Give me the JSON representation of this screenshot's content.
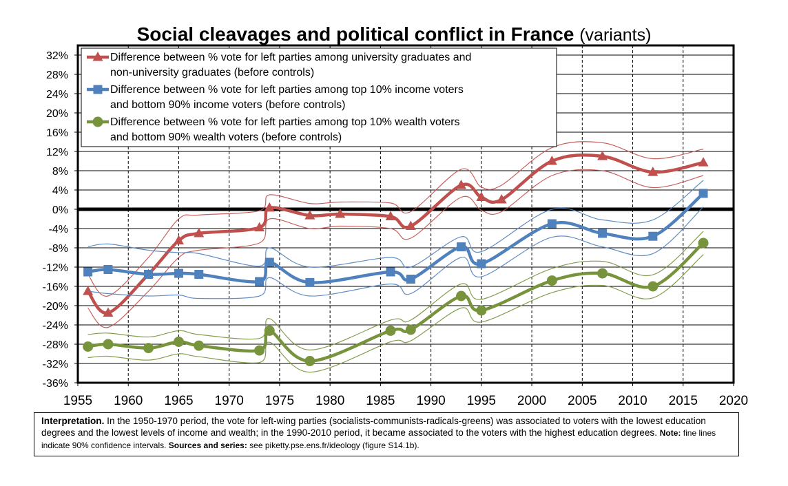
{
  "chart_data": {
    "type": "line",
    "title": "Social cleavages and political conflict in France",
    "subtitle": "(variants)",
    "xlim": [
      1955,
      2020
    ],
    "ylim": [
      -36,
      34
    ],
    "x_ticks": [
      1955,
      1960,
      1965,
      1970,
      1975,
      1980,
      1985,
      1990,
      1995,
      2000,
      2005,
      2010,
      2015,
      2020
    ],
    "y_ticks": [
      -36,
      -32,
      -28,
      -24,
      -20,
      -16,
      -12,
      -8,
      -4,
      0,
      4,
      8,
      12,
      16,
      20,
      24,
      28,
      32
    ],
    "y_tick_labels": [
      "-36%",
      "-32%",
      "-28%",
      "-24%",
      "-20%",
      "-16%",
      "-12%",
      "-8%",
      "-4%",
      "0%",
      "4%",
      "8%",
      "12%",
      "16%",
      "20%",
      "24%",
      "28%",
      "32%"
    ],
    "x_tick_labels": [
      "1955",
      "1960",
      "1965",
      "1970",
      "1975",
      "1980",
      "1985",
      "1990",
      "1995",
      "2000",
      "2005",
      "2010",
      "2015",
      "2020"
    ],
    "grid": true,
    "legend_position": "top-left",
    "series": [
      {
        "name_lines": [
          "Difference between % vote for left parties among university graduates and",
          "non-university graduates (before controls)"
        ],
        "color": "#c0504d",
        "marker": "triangle",
        "x": [
          1956,
          1958,
          1962,
          1965,
          1967,
          1973,
          1974,
          1978,
          1981,
          1986,
          1988,
          1993,
          1995,
          1997,
          2002,
          2007,
          2012,
          2017
        ],
        "values": [
          -17,
          -21.5,
          -13.5,
          -6.5,
          -5,
          -3.8,
          0.3,
          -1.3,
          -1,
          -1.5,
          -3.5,
          5,
          2.5,
          2,
          10,
          11,
          7.7,
          9.7
        ],
        "upper": [
          -13.5,
          -18,
          -10,
          -2,
          -1.2,
          -0.3,
          3,
          1.2,
          1.5,
          1.3,
          -0.5,
          8.3,
          4.6,
          5,
          12.8,
          13.8,
          10.5,
          12.5
        ],
        "lower": [
          -20.5,
          -24.5,
          -17,
          -10,
          -8.5,
          -7,
          -2,
          -4,
          -3.5,
          -4,
          -6,
          2.5,
          -0.2,
          -0.5,
          7,
          8,
          4.5,
          7
        ]
      },
      {
        "name_lines": [
          "Difference between % vote for left parties among top 10% income voters",
          "and bottom 90% income voters (before controls)"
        ],
        "color": "#4f81bd",
        "marker": "square",
        "x": [
          1956,
          1958,
          1962,
          1965,
          1967,
          1973,
          1974,
          1978,
          1986,
          1988,
          1993,
          1995,
          2002,
          2007,
          2012,
          2017
        ],
        "values": [
          -13,
          -12.5,
          -13.5,
          -13.3,
          -13.5,
          -15,
          -11,
          -15.2,
          -13,
          -14.5,
          -7.8,
          -11.3,
          -3,
          -5,
          -5.6,
          3.3
        ],
        "upper": [
          -7.8,
          -7.2,
          -8.5,
          -9,
          -9.2,
          -11.8,
          -8,
          -12,
          -10,
          -12,
          -5.7,
          -8.8,
          0,
          -2.2,
          -2.2,
          6
        ],
        "lower": [
          -17,
          -17.5,
          -18,
          -17.8,
          -18.5,
          -18,
          -14.2,
          -18,
          -15.5,
          -17.5,
          -10,
          -14,
          -5.8,
          -7.8,
          -9.2,
          0.5
        ]
      },
      {
        "name_lines": [
          "Difference between % vote for left parties among top 10% wealth voters",
          "and bottom 90% wealth voters (before controls)"
        ],
        "color": "#77933c",
        "marker": "circle",
        "x": [
          1956,
          1958,
          1962,
          1965,
          1967,
          1973,
          1974,
          1978,
          1986,
          1988,
          1993,
          1995,
          2002,
          2007,
          2012,
          2017
        ],
        "values": [
          -28.5,
          -28,
          -28.8,
          -27.5,
          -28.3,
          -29.3,
          -25.2,
          -31.5,
          -25.2,
          -25,
          -18,
          -21,
          -14.8,
          -13.3,
          -16,
          -7
        ],
        "upper": [
          -26,
          -25.7,
          -26.5,
          -25.2,
          -26,
          -26.8,
          -22.7,
          -29.2,
          -23,
          -23,
          -15.5,
          -18.7,
          -12.3,
          -10.8,
          -13.6,
          -4.6
        ],
        "lower": [
          -30.8,
          -30.5,
          -31.3,
          -30,
          -30.6,
          -31.8,
          -27.6,
          -33.8,
          -27.5,
          -27.3,
          -20.5,
          -23.4,
          -17.3,
          -15.8,
          -18.4,
          -9.4
        ]
      }
    ]
  },
  "note": {
    "label_interpretation": "Interpretation.",
    "text_interpretation": " In the 1950-1970 period, the vote for left-wing parties (socialists-communists-radicals-greens) was associated to voters with the lowest education degrees and the lowest levels of income and wealth; in the 1990-2010 period, it became associated to the voters with the highest education degrees. ",
    "label_note": "Note:",
    "text_note": " fine lines indicate 90% confidence intervals. ",
    "label_sources": "Sources and series:",
    "text_sources": " see piketty.pse.ens.fr/ideology (figure S14.1b)."
  }
}
